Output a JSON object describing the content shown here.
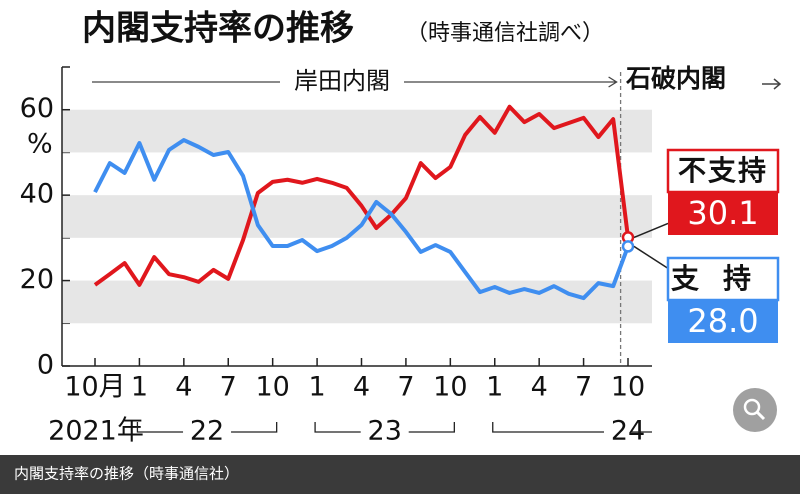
{
  "chart_data": {
    "type": "line",
    "title": "内閣支持率の推移",
    "subtitle": "（時事通信社調べ）",
    "caption": "内閣支持率の推移（時事通信社）",
    "eras": [
      "岸田内閣",
      "石破内閣"
    ],
    "y_unit": "%",
    "years": [
      "2021年",
      "22",
      "23",
      "24"
    ],
    "categories": [
      "10月",
      null,
      null,
      "1",
      null,
      null,
      "4",
      null,
      null,
      "7",
      null,
      null,
      "10",
      null,
      null,
      "1",
      null,
      null,
      "4",
      null,
      null,
      "7",
      null,
      null,
      "10",
      null,
      null,
      "1",
      null,
      null,
      "4",
      null,
      null,
      "7",
      null,
      null,
      "10"
    ],
    "series": [
      {
        "name": "不支持",
        "color": "#e0171d",
        "values": [
          19.0,
          21.5,
          24.1,
          19.0,
          25.5,
          21.5,
          20.8,
          19.7,
          22.5,
          20.4,
          29.5,
          40.5,
          43.1,
          43.6,
          42.9,
          43.8,
          42.9,
          41.7,
          37.5,
          32.3,
          35.4,
          39.3,
          47.5,
          44.0,
          46.6,
          54.1,
          58.3,
          54.6,
          60.7,
          57.1,
          59.0,
          55.7,
          56.9,
          58.1,
          53.6,
          57.8,
          30.1
        ]
      },
      {
        "name": "支持",
        "color": "#3f8ef0",
        "values": [
          40.7,
          47.5,
          45.2,
          52.2,
          43.6,
          50.6,
          52.9,
          51.3,
          49.4,
          50.1,
          44.5,
          33.0,
          28.1,
          28.1,
          29.5,
          26.9,
          28.1,
          30.0,
          33.0,
          38.4,
          35.6,
          31.4,
          26.7,
          28.3,
          26.7,
          22.0,
          17.3,
          18.5,
          17.1,
          18.0,
          17.1,
          18.7,
          16.9,
          15.9,
          19.4,
          18.7,
          28.0
        ],
        "value_labels": [
          null,
          null,
          null,
          null,
          null,
          null,
          null,
          null,
          null,
          null,
          null,
          null,
          null,
          null,
          null,
          null,
          null,
          null,
          null,
          null,
          null,
          null,
          null,
          null,
          null,
          null,
          null,
          null,
          null,
          null,
          null,
          null,
          null,
          null,
          null,
          null,
          "28.0"
        ]
      }
    ],
    "ylim": [
      0,
      70
    ],
    "yticks": [
      0,
      20,
      40,
      60
    ],
    "grid": true
  }
}
